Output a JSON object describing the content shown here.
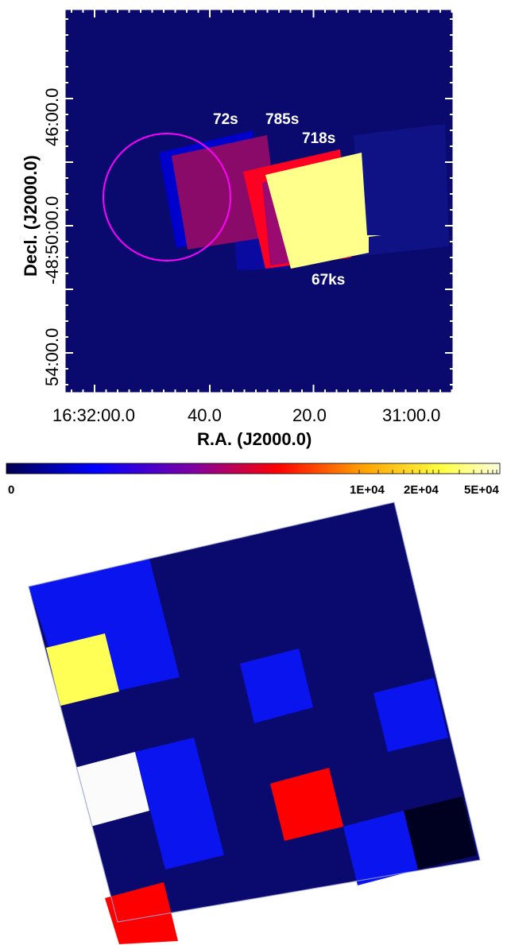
{
  "top_panel": {
    "background_color": "#0a0a6e",
    "xlabel": "R.A. (J2000.0)",
    "ylabel_line1": "Decl. (J2000.0)",
    "x_ticks": [
      "16:32:00.0",
      "40.0",
      "20.0",
      "31:00.0"
    ],
    "y_ticks": [
      "46:00.0",
      "-48:50:00.0",
      "54:00.0"
    ],
    "exposure_labels": [
      "72s",
      "785s",
      "718s",
      "67ks"
    ],
    "circle_color": "#ff00ff",
    "field_colors": {
      "ks67": "#ffff8c",
      "s718": "#ff0022",
      "s785": "#8a0a6a",
      "s72": "#0000cc"
    }
  },
  "colorbar": {
    "tick_labels": [
      "0",
      "1E+04",
      "2E+04",
      "5E+04"
    ],
    "colormap_colors": [
      "#000050",
      "#0000ff",
      "#8000a0",
      "#ff0000",
      "#ffa000",
      "#ffff40",
      "#ffffe0"
    ]
  },
  "bottom_panel": {
    "background_color": "#0a0a6e",
    "pixel_colors": {
      "yellow": "#ffff55",
      "white": "#fbfbfb",
      "blue": "#0a14ee",
      "red": "#ff0000",
      "black": "#000020"
    }
  }
}
